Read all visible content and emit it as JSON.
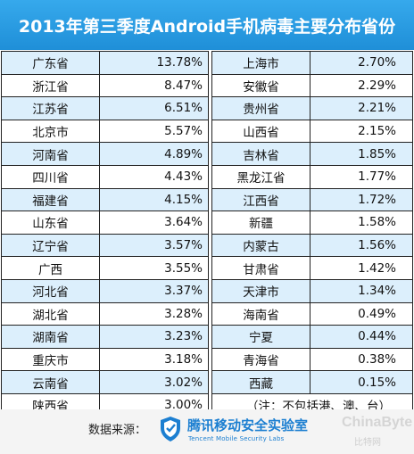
{
  "chart_data": {
    "type": "table",
    "title": "2013年第三季度Android手机病毒主要分布省份",
    "rows": [
      [
        "广东省",
        "13.78%",
        "上海市",
        "2.70%"
      ],
      [
        "浙江省",
        "8.47%",
        "安徽省",
        "2.29%"
      ],
      [
        "江苏省",
        "6.51%",
        "贵州省",
        "2.21%"
      ],
      [
        "北京市",
        "5.57%",
        "山西省",
        "2.15%"
      ],
      [
        "河南省",
        "4.89%",
        "吉林省",
        "1.85%"
      ],
      [
        "四川省",
        "4.43%",
        "黑龙江省",
        "1.77%"
      ],
      [
        "福建省",
        "4.15%",
        "江西省",
        "1.72%"
      ],
      [
        "山东省",
        "3.64%",
        "新疆",
        "1.58%"
      ],
      [
        "辽宁省",
        "3.57%",
        "内蒙古",
        "1.56%"
      ],
      [
        "广西",
        "3.55%",
        "甘肃省",
        "1.42%"
      ],
      [
        "河北省",
        "3.37%",
        "天津市",
        "1.34%"
      ],
      [
        "湖北省",
        "3.28%",
        "海南省",
        "0.49%"
      ],
      [
        "湖南省",
        "3.23%",
        "宁夏",
        "0.44%"
      ],
      [
        "重庆市",
        "3.18%",
        "青海省",
        "0.38%"
      ],
      [
        "云南省",
        "3.02%",
        "西藏",
        "0.15%"
      ]
    ],
    "last_row": [
      "陕西省",
      "3.00%"
    ],
    "note": "（注：不包括港、澳、台）",
    "header_color": "#2a9be3",
    "stripe_color": "#dceffc"
  },
  "footer": {
    "source_label": "数据来源：",
    "lab_name": "腾讯移动安全实验室",
    "lab_name_en": "Tencent Mobile Security Labs",
    "watermark": "ChinaByte",
    "watermark_sub": "比特网"
  }
}
